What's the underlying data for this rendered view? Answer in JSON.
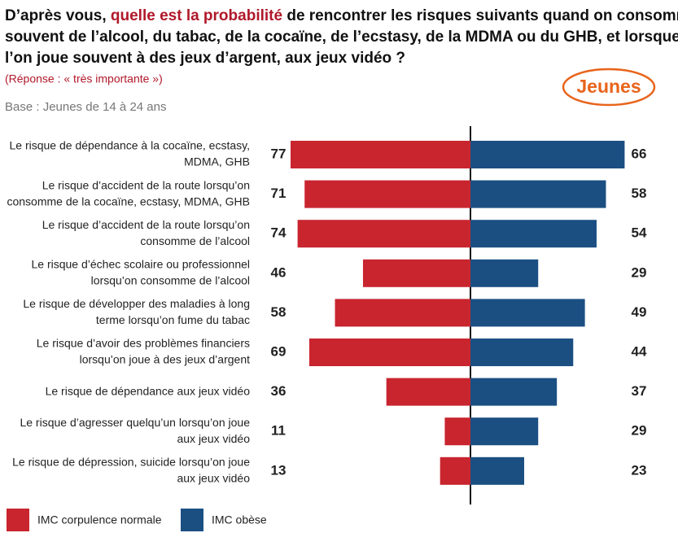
{
  "chart_data": {
    "type": "butterfly",
    "title": [
      [
        "D’après vous, ",
        "quelle est la probabilité",
        " de rencontrer les risques suivants quand on consomme"
      ],
      [
        "souvent de l’alcool, du tabac, de la cocaïne, de l’ecstasy, de la MDMA ou du GHB, et lorsque"
      ],
      [
        "l’on joue souvent à des jeux d’argent, aux jeux vidéo ?"
      ]
    ],
    "subtitle": "(Réponse : « très importante »)",
    "base": "Base : Jeunes de 14 à 24 ans",
    "badge": "Jeunes",
    "categories": [
      [
        "Le risque de dépendance à la cocaïne, ecstasy,",
        "MDMA, GHB"
      ],
      [
        "Le risque d’accident de la route lorsqu’on",
        "consomme de la cocaïne, ecstasy, MDMA, GHB"
      ],
      [
        "Le risque d’accident de la route lorsqu’on",
        "consomme de l’alcool"
      ],
      [
        "Le risque d’échec scolaire ou professionnel",
        "lorsqu’on consomme de l’alcool"
      ],
      [
        "Le risque de développer des maladies à long",
        "terme lorsqu’on fume du tabac"
      ],
      [
        "Le risque d’avoir des problèmes financiers",
        "lorsqu’on joue à des jeux d’argent"
      ],
      [
        "Le risque de dépendance aux jeux vidéo"
      ],
      [
        "Le risque d’agresser quelqu’un lorsqu’on joue",
        "aux jeux vidéo"
      ],
      [
        "Le risque de dépression, suicide lorsqu’on joue",
        "aux jeux vidéo"
      ]
    ],
    "series": [
      {
        "name": "IMC corpulence normale",
        "color": "#c8252f",
        "values": [
          77,
          71,
          74,
          46,
          58,
          69,
          36,
          11,
          13
        ]
      },
      {
        "name": "IMC obèse",
        "color": "#1b4f82",
        "values": [
          66,
          58,
          54,
          29,
          49,
          44,
          37,
          29,
          23
        ]
      }
    ]
  }
}
